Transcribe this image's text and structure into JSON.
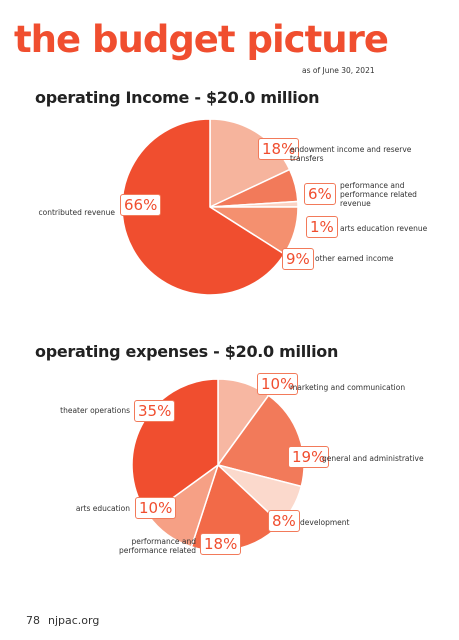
{
  "page": {
    "title": "the budget picture",
    "date": "as of June 30, 2021",
    "page_number": "78",
    "site": "njpac.org"
  },
  "chart_data": [
    {
      "type": "pie",
      "title": "operating Income - $20.0 million",
      "categories": [
        "endowment income and reserve transfers",
        "performance and performance related revenue",
        "arts education revenue",
        "other earned income",
        "contributed revenue"
      ],
      "values": [
        18,
        6,
        1,
        9,
        66
      ],
      "value_labels": [
        "18%",
        "6%",
        "1%",
        "9%",
        "66%"
      ],
      "colors": [
        "#f6b49d",
        "#f27a5a",
        "#fbd3c4",
        "#f4906f",
        "#f04e2f"
      ]
    },
    {
      "type": "pie",
      "title": "operating expenses - $20.0 million",
      "categories": [
        "marketing and communication",
        "general and administrative",
        "development",
        "performance and performance related",
        "arts education",
        "theater operations"
      ],
      "values": [
        10,
        19,
        8,
        18,
        10,
        35
      ],
      "value_labels": [
        "10%",
        "19%",
        "8%",
        "18%",
        "10%",
        "35%"
      ],
      "colors": [
        "#f7b7a2",
        "#f27a5a",
        "#fbd9cc",
        "#f26a48",
        "#f6a085",
        "#f04e2f"
      ]
    }
  ]
}
